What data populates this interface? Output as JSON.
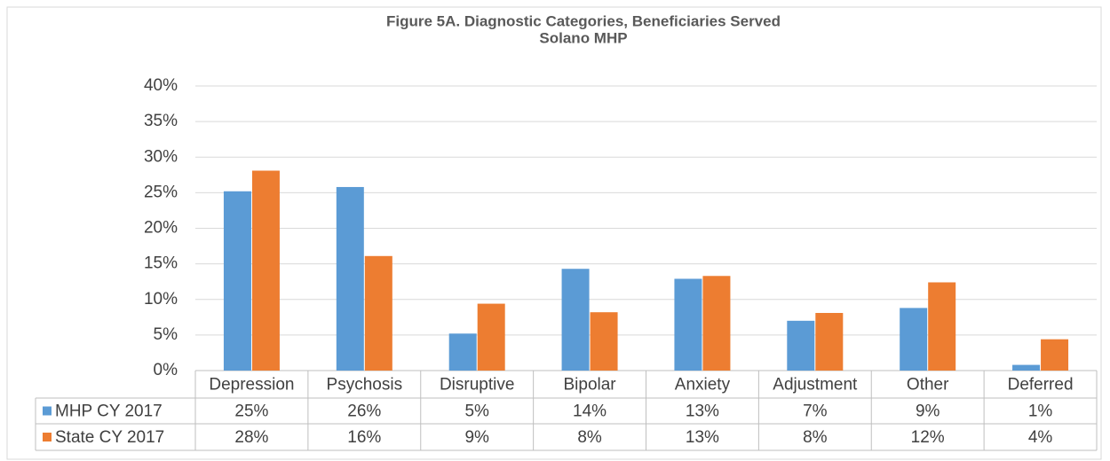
{
  "chart_data": {
    "type": "bar",
    "title": "Figure 5A. Diagnostic Categories, Beneficiaries Served",
    "subtitle": "Solano MHP",
    "categories": [
      "Depression",
      "Psychosis",
      "Disruptive",
      "Bipolar",
      "Anxiety",
      "Adjustment",
      "Other",
      "Deferred"
    ],
    "series": [
      {
        "name": "MHP CY 2017",
        "color": "#5b9bd5",
        "values": [
          25.2,
          25.8,
          5.2,
          14.3,
          12.9,
          7.0,
          8.8,
          0.8
        ],
        "value_labels": [
          "25%",
          "26%",
          "5%",
          "14%",
          "13%",
          "7%",
          "9%",
          "1%"
        ]
      },
      {
        "name": "State CY 2017",
        "color": "#ed7d31",
        "values": [
          28.1,
          16.1,
          9.4,
          8.2,
          13.3,
          8.1,
          12.4,
          4.4
        ],
        "value_labels": [
          "28%",
          "16%",
          "9%",
          "8%",
          "13%",
          "8%",
          "12%",
          "4%"
        ]
      }
    ],
    "ylim": [
      0,
      40
    ],
    "yticks": [
      {
        "value": 0,
        "label": "0%"
      },
      {
        "value": 5,
        "label": "5%"
      },
      {
        "value": 10,
        "label": "10%"
      },
      {
        "value": 15,
        "label": "15%"
      },
      {
        "value": 20,
        "label": "20%"
      },
      {
        "value": 25,
        "label": "25%"
      },
      {
        "value": 30,
        "label": "30%"
      },
      {
        "value": 35,
        "label": "35%"
      },
      {
        "value": 40,
        "label": "40%"
      }
    ],
    "grid": true
  }
}
